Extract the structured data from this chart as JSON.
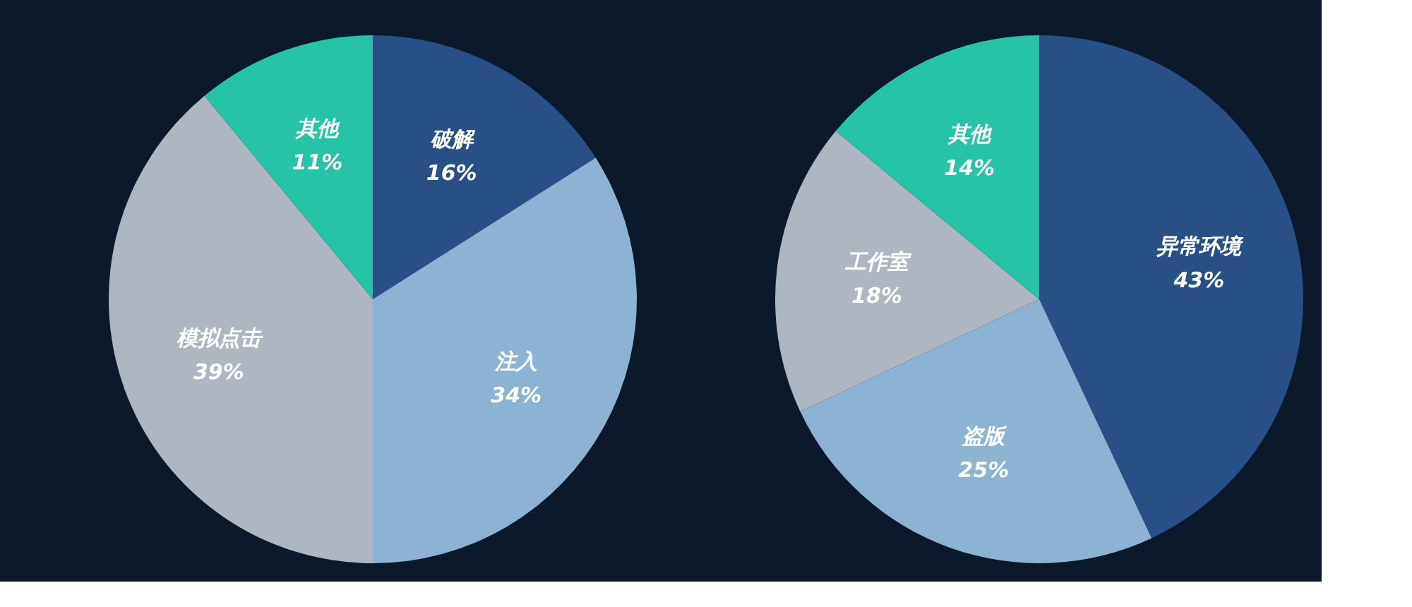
{
  "chart_data": [
    {
      "type": "pie",
      "categories": [
        "破解",
        "注入",
        "模拟点击",
        "其他"
      ],
      "values": [
        16,
        34,
        39,
        11
      ],
      "value_labels": [
        "16%",
        "34%",
        "39%",
        "11%"
      ],
      "colors": [
        "#294f87",
        "#8db3d2",
        "#aeb6c1",
        "#25c4a6"
      ],
      "legend": false
    },
    {
      "type": "pie",
      "categories": [
        "异常环境",
        "盗版",
        "工作室",
        "其他"
      ],
      "values": [
        43,
        25,
        18,
        14
      ],
      "value_labels": [
        "43%",
        "25%",
        "18%",
        "14%"
      ],
      "colors": [
        "#294f87",
        "#8db3d2",
        "#aeb6c1",
        "#25c4a6"
      ],
      "legend": false
    }
  ]
}
